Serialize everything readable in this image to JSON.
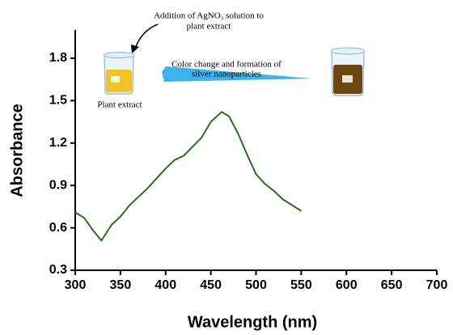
{
  "chart_data": {
    "type": "line",
    "xlabel": "Wavelength (nm)",
    "ylabel": "Absorbance",
    "x": [
      300,
      310,
      320,
      329,
      340,
      350,
      360,
      380,
      400,
      410,
      420,
      440,
      450,
      462,
      470,
      480,
      490,
      500,
      510,
      520,
      530,
      540,
      550
    ],
    "values": [
      0.71,
      0.67,
      0.58,
      0.51,
      0.62,
      0.68,
      0.76,
      0.88,
      1.02,
      1.08,
      1.11,
      1.24,
      1.35,
      1.42,
      1.39,
      1.27,
      1.12,
      0.98,
      0.91,
      0.86,
      0.8,
      0.76,
      0.72
    ],
    "color": "#2f6a1f",
    "xlim": [
      300,
      700
    ],
    "ylim": [
      0.3,
      2.0
    ],
    "xticks": [
      300,
      350,
      400,
      450,
      500,
      550,
      600,
      650,
      700
    ],
    "yticks": [
      0.3,
      0.6,
      0.9,
      1.2,
      1.5,
      1.8
    ],
    "annotations": {
      "addition": [
        "Addition of AgNO₃ solution to",
        "plant extract"
      ],
      "plant": "Plant extract",
      "change": [
        "Color change and formation of",
        "silver nanoparticles"
      ]
    }
  }
}
